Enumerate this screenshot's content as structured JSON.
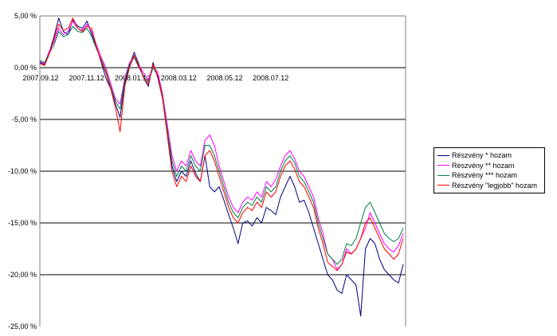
{
  "chart_data": {
    "type": "line",
    "x_tick_labels": [
      "2007.09.12",
      "2007.11.12",
      "2008.01.12",
      "2008.03.12",
      "2008.05.12",
      "2008.07.12"
    ],
    "y_tick_labels": [
      "5,00 %",
      "0,00 %",
      "-5,00 %",
      "-10,00 %",
      "-15,00 %",
      "-20,00 %",
      "-25,00 %"
    ],
    "ylim": [
      -25,
      5
    ],
    "y_ticks": [
      5,
      0,
      -5,
      -10,
      -15,
      -20,
      -25
    ],
    "grid": "horizontal",
    "legend_position": "right",
    "x_points": [
      0,
      4,
      8,
      12,
      16,
      20,
      24,
      28,
      32,
      36,
      40,
      44,
      48,
      52,
      56,
      60,
      64,
      68,
      72,
      76,
      80,
      84,
      88,
      92,
      96,
      100,
      104,
      108,
      112,
      116,
      120,
      124,
      128,
      132,
      136,
      140,
      144,
      148,
      152,
      156,
      160,
      164,
      168,
      172,
      176,
      180,
      184,
      188,
      192,
      196,
      200,
      204,
      208,
      212,
      216,
      220,
      224,
      228,
      232,
      236,
      240,
      244,
      248,
      252,
      256,
      260,
      264,
      268,
      272,
      276,
      280,
      284,
      288,
      292,
      296,
      300,
      304,
      308
    ],
    "x_tick_positions": [
      0,
      39,
      78,
      117,
      156,
      195
    ],
    "series": [
      {
        "name": "Részvény * hozam",
        "color": "#000080",
        "values": [
          0.5,
          0.3,
          1.5,
          3.0,
          4.8,
          3.5,
          3.2,
          4.6,
          4.0,
          3.8,
          4.5,
          3.2,
          2.0,
          0.5,
          -1.0,
          -2.0,
          -3.5,
          -4.8,
          -1.5,
          0.2,
          1.5,
          0.3,
          -1.0,
          -1.8,
          0.5,
          -1.0,
          -3.0,
          -6.0,
          -9.5,
          -11.0,
          -10.0,
          -10.5,
          -9.0,
          -10.2,
          -11.0,
          -8.5,
          -11.5,
          -12.0,
          -11.5,
          -12.8,
          -14.2,
          -15.5,
          -17.0,
          -15.0,
          -14.8,
          -15.3,
          -14.5,
          -15.0,
          -13.5,
          -13.8,
          -14.2,
          -12.5,
          -11.5,
          -10.5,
          -11.5,
          -13.0,
          -12.8,
          -14.0,
          -15.5,
          -17.0,
          -18.5,
          -20.0,
          -20.5,
          -21.5,
          -21.8,
          -20.0,
          -20.5,
          -21.0,
          -24.0,
          -17.5,
          -16.5,
          -17.0,
          -18.5,
          -19.5,
          -20.0,
          -20.5,
          -20.8,
          -19.0
        ]
      },
      {
        "name": "Részvény ** hozam",
        "color": "#ff00ff",
        "values": [
          0.6,
          0.4,
          1.6,
          2.5,
          3.8,
          3.2,
          3.5,
          4.5,
          3.8,
          3.6,
          4.2,
          3.5,
          2.2,
          1.0,
          0.0,
          -1.5,
          -3.0,
          -3.5,
          -1.0,
          0.5,
          1.0,
          0.2,
          -0.5,
          -1.2,
          0.2,
          -0.5,
          -2.5,
          -5.5,
          -8.5,
          -10.0,
          -9.0,
          -9.5,
          -8.0,
          -9.0,
          -9.5,
          -7.0,
          -6.5,
          -7.5,
          -9.5,
          -11.0,
          -12.5,
          -13.5,
          -14.0,
          -13.0,
          -12.5,
          -12.8,
          -12.0,
          -12.5,
          -11.0,
          -11.5,
          -10.8,
          -9.5,
          -8.5,
          -8.0,
          -8.8,
          -10.0,
          -10.5,
          -11.5,
          -12.5,
          -14.5,
          -16.0,
          -18.0,
          -18.5,
          -19.5,
          -19.0,
          -17.5,
          -18.0,
          -17.5,
          -16.5,
          -15.5,
          -14.0,
          -15.0,
          -16.0,
          -17.0,
          -17.5,
          -17.8,
          -17.2,
          -16.0
        ]
      },
      {
        "name": "Részvény *** hozam",
        "color": "#008040",
        "values": [
          0.7,
          0.5,
          1.4,
          2.2,
          3.5,
          3.0,
          3.2,
          4.0,
          3.5,
          3.4,
          3.8,
          3.0,
          1.8,
          0.8,
          -0.3,
          -1.8,
          -3.2,
          -4.0,
          -1.2,
          0.3,
          1.0,
          0.0,
          -0.8,
          -1.4,
          0.0,
          -0.8,
          -2.8,
          -6.0,
          -9.0,
          -10.5,
          -9.5,
          -10.0,
          -8.5,
          -9.5,
          -10.0,
          -7.5,
          -7.5,
          -8.5,
          -10.0,
          -11.5,
          -13.0,
          -14.0,
          -14.5,
          -13.5,
          -13.0,
          -13.3,
          -12.5,
          -13.0,
          -11.5,
          -12.0,
          -11.5,
          -10.0,
          -9.0,
          -8.5,
          -9.2,
          -10.5,
          -11.0,
          -12.0,
          -13.0,
          -15.0,
          -16.5,
          -18.0,
          -18.5,
          -19.0,
          -18.5,
          -17.0,
          -17.2,
          -16.5,
          -15.0,
          -13.5,
          -13.0,
          -14.0,
          -15.0,
          -16.0,
          -16.5,
          -16.8,
          -16.5,
          -15.5
        ]
      },
      {
        "name": "Részvény \"legjobb\" hozam",
        "color": "#ff0000",
        "values": [
          0.4,
          0.2,
          1.3,
          2.8,
          4.2,
          3.6,
          3.8,
          4.8,
          3.8,
          3.5,
          4.0,
          3.8,
          2.0,
          0.6,
          -0.5,
          -2.0,
          -3.8,
          -6.2,
          -1.8,
          0.0,
          1.2,
          0.1,
          -1.0,
          -1.6,
          0.3,
          -0.8,
          -3.0,
          -6.5,
          -10.0,
          -11.5,
          -10.5,
          -11.0,
          -9.5,
          -10.5,
          -11.0,
          -8.5,
          -8.0,
          -9.0,
          -10.5,
          -12.0,
          -13.5,
          -14.5,
          -15.0,
          -14.0,
          -13.5,
          -13.8,
          -13.0,
          -13.5,
          -12.0,
          -12.5,
          -12.0,
          -10.5,
          -9.5,
          -9.0,
          -9.8,
          -11.0,
          -11.5,
          -12.5,
          -13.5,
          -15.5,
          -17.0,
          -18.8,
          -19.2,
          -19.6,
          -19.0,
          -17.8,
          -18.0,
          -17.5,
          -16.5,
          -15.0,
          -14.5,
          -15.5,
          -16.5,
          -17.5,
          -18.0,
          -18.5,
          -18.0,
          -16.5
        ]
      }
    ]
  }
}
